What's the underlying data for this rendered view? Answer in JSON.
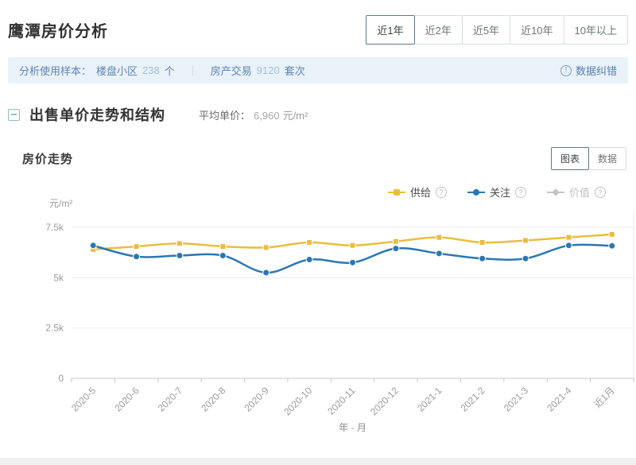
{
  "page": {
    "title": "鹰潭房价分析"
  },
  "header": {
    "ranges": [
      {
        "label": "近1年",
        "active": true
      },
      {
        "label": "近2年",
        "active": false
      },
      {
        "label": "近5年",
        "active": false
      },
      {
        "label": "近10年",
        "active": false
      },
      {
        "label": "10年以上",
        "active": false
      }
    ]
  },
  "sample_bar": {
    "label": "分析使用样本：",
    "items": [
      {
        "name": "楼盘小区",
        "value": "238",
        "unit": "个"
      },
      {
        "name": "房产交易",
        "value": "9120",
        "unit": "套次"
      }
    ],
    "divider": "｜",
    "correction_link": "数据纠错",
    "info_icon": "!"
  },
  "section": {
    "title": "出售单价走势和结构",
    "avg_label": "平均单价：",
    "avg_value": "6,960",
    "avg_unit": "元/m²"
  },
  "trend": {
    "title": "房价走势",
    "view_tabs": [
      {
        "label": "图表",
        "active": true
      },
      {
        "label": "数据",
        "active": false
      }
    ]
  },
  "chart_data": {
    "type": "line",
    "title": "房价走势",
    "unit_label": "元/m²",
    "xlabel": "年 - 月",
    "ylim": [
      0,
      7500
    ],
    "grid": true,
    "legend_position": "top-right",
    "legend_help_icon": "?",
    "yticks": [
      {
        "value": 0,
        "label": "0"
      },
      {
        "value": 2500,
        "label": "2.5k"
      },
      {
        "value": 5000,
        "label": "5k"
      },
      {
        "value": 7500,
        "label": "7.5k"
      }
    ],
    "categories": [
      "2020-5",
      "2020-6",
      "2020-7",
      "2020-8",
      "2020-9",
      "2020-10",
      "2020-11",
      "2020-12",
      "2021-1",
      "2021-2",
      "2021-3",
      "2021-4",
      "近1月"
    ],
    "series": [
      {
        "name": "供给",
        "color": "#e9bd41",
        "marker": "square",
        "values": [
          6400,
          6550,
          6700,
          6550,
          6500,
          6750,
          6600,
          6800,
          7000,
          6750,
          6850,
          7000,
          7150
        ]
      },
      {
        "name": "关注",
        "color": "#2b77b3",
        "marker": "circle",
        "values": [
          6600,
          6050,
          6100,
          6100,
          5250,
          5900,
          5750,
          6450,
          6200,
          5950,
          5950,
          6600,
          6580
        ]
      }
    ],
    "legend_extra": [
      {
        "name": "价值",
        "color": "#c4c4c4",
        "marker": "diamond",
        "disabled": true
      }
    ]
  }
}
